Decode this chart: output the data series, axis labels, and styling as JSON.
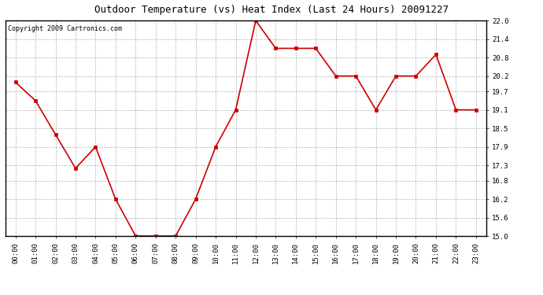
{
  "title": "Outdoor Temperature (vs) Heat Index (Last 24 Hours) 20091227",
  "copyright_text": "Copyright 2009 Cartronics.com",
  "x_labels": [
    "00:00",
    "01:00",
    "02:00",
    "03:00",
    "04:00",
    "05:00",
    "06:00",
    "07:00",
    "08:00",
    "09:00",
    "10:00",
    "11:00",
    "12:00",
    "13:00",
    "14:00",
    "15:00",
    "16:00",
    "17:00",
    "18:00",
    "19:00",
    "20:00",
    "21:00",
    "22:00",
    "23:00"
  ],
  "y_values": [
    20.0,
    19.4,
    18.3,
    17.2,
    17.9,
    16.2,
    15.0,
    15.0,
    15.0,
    16.2,
    17.9,
    19.1,
    22.0,
    21.1,
    21.1,
    21.1,
    20.2,
    20.2,
    19.1,
    20.2,
    20.2,
    20.9,
    19.1,
    19.1
  ],
  "line_color": "#cc0000",
  "marker": "s",
  "marker_size": 3,
  "line_width": 1.2,
  "ylim": [
    15.0,
    22.0
  ],
  "yticks": [
    15.0,
    15.6,
    16.2,
    16.8,
    17.3,
    17.9,
    18.5,
    19.1,
    19.7,
    20.2,
    20.8,
    21.4,
    22.0
  ],
  "background_color": "#ffffff",
  "plot_bg_color": "#ffffff",
  "grid_color": "#aaaaaa",
  "title_fontsize": 9,
  "copyright_fontsize": 6,
  "tick_fontsize": 6.5
}
